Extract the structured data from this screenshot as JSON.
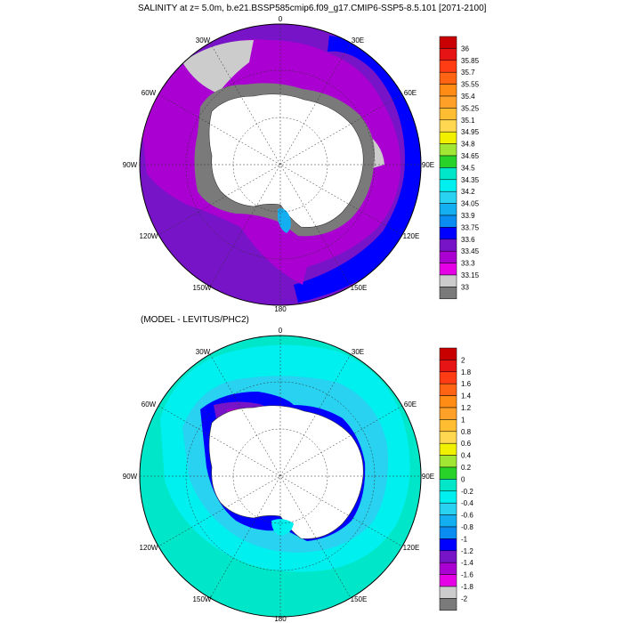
{
  "panel1": {
    "title": "SALINITY at z=   5.0m, b.e21.BSSP585cmip6.f09_g17.CMIP6-SSP5-8.5.101 [2071-2100]",
    "longitude_labels": {
      "lon_0": "0",
      "lon_30E": "30E",
      "lon_60E": "60E",
      "lon_90E": "90E",
      "lon_120E": "120E",
      "lon_150E": "150E",
      "lon_180": "180",
      "lon_150W": "150W",
      "lon_120W": "120W",
      "lon_90W": "90W",
      "lon_60W": "60W",
      "lon_30W": "30W"
    },
    "colorbar": {
      "labels": [
        "36",
        "35.85",
        "35.7",
        "35.55",
        "35.4",
        "35.25",
        "35.1",
        "34.95",
        "34.8",
        "34.65",
        "34.5",
        "34.35",
        "34.2",
        "34.05",
        "33.9",
        "33.75",
        "33.6",
        "33.45",
        "33.3",
        "33.15",
        "33"
      ],
      "colors": [
        "#c80000",
        "#e61414",
        "#ff3c14",
        "#ff6414",
        "#ff8c14",
        "#ffa028",
        "#ffbe32",
        "#ffd750",
        "#f0f000",
        "#a0e632",
        "#28d228",
        "#00e6c8",
        "#00f0f0",
        "#28d2f0",
        "#14aff0",
        "#0a8cf0",
        "#0000ff",
        "#7814c8",
        "#aa00d2",
        "#e600e6",
        "#cccccc",
        "#7a7a7a"
      ]
    }
  },
  "panel2": {
    "title": "(MODEL - LEVITUS/PHC2)",
    "longitude_labels": {
      "lon_0": "0",
      "lon_30E": "30E",
      "lon_60E": "60E",
      "lon_90E": "90E",
      "lon_120E": "120E",
      "lon_150E": "150E",
      "lon_180": "180",
      "lon_150W": "150W",
      "lon_120W": "120W",
      "lon_90W": "90W",
      "lon_60W": "60W",
      "lon_30W": "30W"
    },
    "colorbar": {
      "labels": [
        "2",
        "1.8",
        "1.6",
        "1.4",
        "1.2",
        "1",
        "0.8",
        "0.6",
        "0.4",
        "0.2",
        "0",
        "-0.2",
        "-0.4",
        "-0.6",
        "-0.8",
        "-1",
        "-1.2",
        "-1.4",
        "-1.6",
        "-1.8",
        "-2"
      ],
      "colors": [
        "#c80000",
        "#e61414",
        "#ff3c14",
        "#ff6414",
        "#ff8c14",
        "#ffa028",
        "#ffbe32",
        "#ffd750",
        "#f0f000",
        "#a0e632",
        "#28d228",
        "#00e6c8",
        "#00f0f0",
        "#28d2f0",
        "#14aff0",
        "#0a8cf0",
        "#0000ff",
        "#7814c8",
        "#aa00d2",
        "#e600e6",
        "#cccccc",
        "#7a7a7a"
      ]
    }
  }
}
